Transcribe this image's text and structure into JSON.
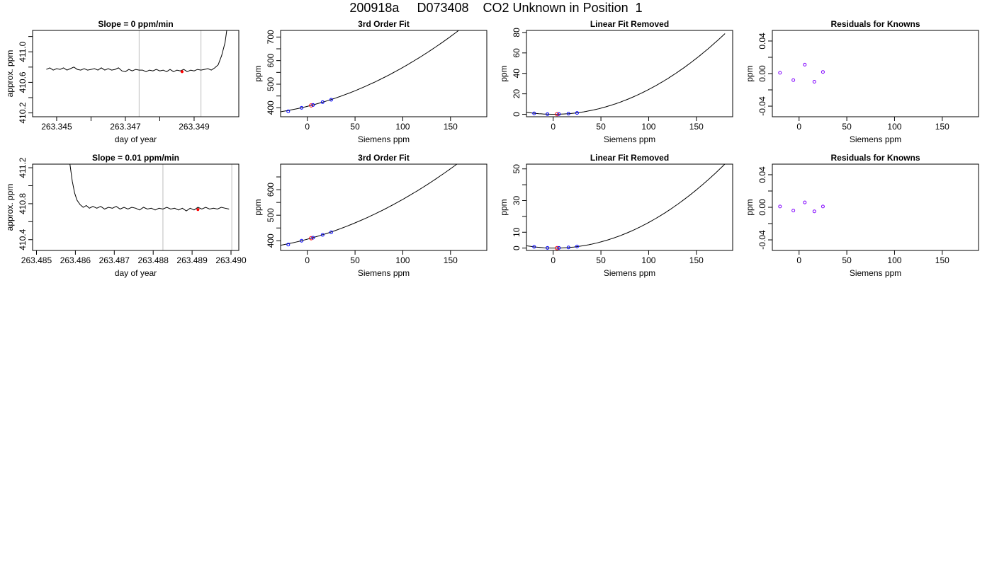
{
  "figure": {
    "title": "200918a     D073408    CO2 Unknown in Position  1"
  },
  "chart_data": [
    {
      "type": "line",
      "title": "Slope =  0  ppm/min",
      "xlabel": "day of year",
      "ylabel": "approx. ppm",
      "xlim": [
        263.3443,
        263.3503
      ],
      "ylim": [
        410.15,
        411.28
      ],
      "xticks": [
        263.345,
        263.346,
        263.347,
        263.348,
        263.349
      ],
      "xtick_labels": [
        "263.345",
        "",
        "263.347",
        "",
        "263.349"
      ],
      "yticks": [
        410.2,
        410.4,
        410.6,
        410.8,
        411.0,
        411.2
      ],
      "ytick_labels": [
        "410.2",
        "",
        "410.6",
        "",
        "411.0",
        ""
      ],
      "vlines": [
        263.3474,
        263.3492
      ],
      "series": [
        {
          "values": [
            [
              263.3447,
              410.77
            ],
            [
              263.3448,
              410.79
            ],
            [
              263.3449,
              410.76
            ],
            [
              263.345,
              410.78
            ],
            [
              263.3451,
              410.77
            ],
            [
              263.3452,
              410.79
            ],
            [
              263.3453,
              410.76
            ],
            [
              263.3454,
              410.78
            ],
            [
              263.3455,
              410.8
            ],
            [
              263.3456,
              410.77
            ],
            [
              263.3457,
              410.76
            ],
            [
              263.3458,
              410.78
            ],
            [
              263.3459,
              410.76
            ],
            [
              263.346,
              410.77
            ],
            [
              263.3461,
              410.78
            ],
            [
              263.3462,
              410.76
            ],
            [
              263.3463,
              410.79
            ],
            [
              263.3464,
              410.76
            ],
            [
              263.3465,
              410.78
            ],
            [
              263.3466,
              410.76
            ],
            [
              263.3467,
              410.77
            ],
            [
              263.3468,
              410.79
            ],
            [
              263.3469,
              410.75
            ],
            [
              263.347,
              410.74
            ],
            [
              263.3471,
              410.77
            ],
            [
              263.3472,
              410.75
            ],
            [
              263.3473,
              410.77
            ],
            [
              263.3474,
              410.76
            ],
            [
              263.3475,
              410.76
            ],
            [
              263.3476,
              410.74
            ],
            [
              263.3477,
              410.76
            ],
            [
              263.3478,
              410.75
            ],
            [
              263.3479,
              410.77
            ],
            [
              263.348,
              410.75
            ],
            [
              263.3481,
              410.76
            ],
            [
              263.3482,
              410.74
            ],
            [
              263.3483,
              410.77
            ],
            [
              263.3484,
              410.74
            ],
            [
              263.3485,
              410.76
            ],
            [
              263.3486,
              410.75
            ],
            [
              263.3487,
              410.77
            ],
            [
              263.3488,
              410.74
            ],
            [
              263.3489,
              410.76
            ],
            [
              263.349,
              410.75
            ],
            [
              263.3491,
              410.77
            ],
            [
              263.3492,
              410.76
            ],
            [
              263.3493,
              410.77
            ],
            [
              263.3494,
              410.78
            ],
            [
              263.3495,
              410.76
            ],
            [
              263.3496,
              410.79
            ],
            [
              263.3497,
              410.83
            ],
            [
              263.3498,
              410.95
            ],
            [
              263.3499,
              411.12
            ],
            [
              263.34995,
              411.28
            ]
          ]
        }
      ],
      "highlight_points": [
        [
          263.34865,
          410.74
        ]
      ],
      "point_color": "#ff0000"
    },
    {
      "type": "line",
      "title": "3rd Order Fit",
      "xlabel": "Siemens ppm",
      "ylabel": "ppm",
      "xlim": [
        -28,
        188
      ],
      "ylim": [
        362,
        728
      ],
      "xticks": [
        0,
        50,
        100,
        150
      ],
      "xtick_labels": [
        "0",
        "50",
        "100",
        "150"
      ],
      "yticks": [
        400,
        450,
        500,
        550,
        600,
        650,
        700
      ],
      "ytick_labels": [
        "400",
        "",
        "500",
        "",
        "600",
        "",
        "700"
      ],
      "curve": {
        "form": "polynomial",
        "x0": 0,
        "a": 406,
        "b": 1.0,
        "c": 0.0065,
        "d": 0.0,
        "xrange": [
          -28,
          180
        ]
      },
      "points": [
        {
          "x": -20,
          "y": 385,
          "role": "known"
        },
        {
          "x": -6,
          "y": 400,
          "role": "known"
        },
        {
          "x": 4,
          "y": 410,
          "role": "unknown"
        },
        {
          "x": 6,
          "y": 412,
          "role": "known"
        },
        {
          "x": 16,
          "y": 424,
          "role": "known"
        },
        {
          "x": 25,
          "y": 434,
          "role": "known"
        }
      ],
      "point_color": "#0000ff",
      "unknown_color": "#ff0000"
    },
    {
      "type": "line",
      "title": "Linear Fit Removed",
      "xlabel": "Siemens ppm",
      "ylabel": "ppm",
      "xlim": [
        -28,
        188
      ],
      "ylim": [
        -2.4,
        82
      ],
      "xticks": [
        0,
        50,
        100,
        150
      ],
      "xtick_labels": [
        "0",
        "50",
        "100",
        "150"
      ],
      "yticks": [
        0,
        20,
        40,
        60,
        80
      ],
      "ytick_labels": [
        "0",
        "20",
        "40",
        "60",
        "80"
      ],
      "curve": {
        "form": "polynomial",
        "x0": 0,
        "a": 0,
        "b": -0.0028,
        "c": 0.00245,
        "d": 0.0,
        "xrange": [
          -28,
          180
        ]
      },
      "points": [
        {
          "x": -20,
          "y": 0.9,
          "role": "known"
        },
        {
          "x": -6,
          "y": 0.1,
          "role": "known"
        },
        {
          "x": 4,
          "y": 0.1,
          "role": "unknown"
        },
        {
          "x": 6,
          "y": 0.2,
          "role": "known"
        },
        {
          "x": 16,
          "y": 0.6,
          "role": "known"
        },
        {
          "x": 25,
          "y": 1.3,
          "role": "known"
        }
      ],
      "point_color": "#0000ff",
      "unknown_color": "#ff0000"
    },
    {
      "type": "scatter",
      "title": "Residuals for Knowns",
      "xlabel": "Siemens ppm",
      "ylabel": "ppm",
      "xlim": [
        -28,
        188
      ],
      "ylim": [
        -0.053,
        0.053
      ],
      "xticks": [
        0,
        50,
        100,
        150
      ],
      "xtick_labels": [
        "0",
        "50",
        "100",
        "150"
      ],
      "yticks": [
        -0.04,
        -0.02,
        0.0,
        0.02,
        0.04
      ],
      "ytick_labels": [
        "-0.04",
        "",
        "0.00",
        "",
        "0.04"
      ],
      "points": [
        {
          "x": -20,
          "y": 0.001
        },
        {
          "x": -6,
          "y": -0.008
        },
        {
          "x": 6,
          "y": 0.011
        },
        {
          "x": 16,
          "y": -0.01
        },
        {
          "x": 25,
          "y": 0.002
        }
      ],
      "point_color": "#8000ff"
    },
    {
      "type": "line",
      "title": "Slope =  0.01  ppm/min",
      "xlabel": "day of year",
      "ylabel": "approx. ppm",
      "xlim": [
        263.4849,
        263.4902
      ],
      "ylim": [
        410.28,
        411.24
      ],
      "xticks": [
        263.485,
        263.486,
        263.487,
        263.488,
        263.489,
        263.49
      ],
      "xtick_labels": [
        "263.485",
        "263.486",
        "263.487",
        "263.488",
        "263.489",
        "263.490"
      ],
      "yticks": [
        410.4,
        410.6,
        410.8,
        411.0,
        411.2
      ],
      "ytick_labels": [
        "410.4",
        "",
        "410.8",
        "",
        "411.2"
      ],
      "vlines": [
        263.48825,
        263.49002
      ],
      "series": [
        {
          "values": [
            [
              263.48586,
              411.24
            ],
            [
              263.48592,
              411.05
            ],
            [
              263.48598,
              410.92
            ],
            [
              263.48604,
              410.84
            ],
            [
              263.48612,
              410.79
            ],
            [
              263.4862,
              410.76
            ],
            [
              263.48628,
              410.78
            ],
            [
              263.48636,
              410.75
            ],
            [
              263.48645,
              410.77
            ],
            [
              263.48655,
              410.75
            ],
            [
              263.48665,
              410.77
            ],
            [
              263.48675,
              410.74
            ],
            [
              263.48685,
              410.76
            ],
            [
              263.48695,
              410.75
            ],
            [
              263.48705,
              410.77
            ],
            [
              263.48715,
              410.74
            ],
            [
              263.48725,
              410.76
            ],
            [
              263.48735,
              410.74
            ],
            [
              263.48745,
              410.76
            ],
            [
              263.48755,
              410.75
            ],
            [
              263.48765,
              410.73
            ],
            [
              263.48775,
              410.76
            ],
            [
              263.48785,
              410.74
            ],
            [
              263.48795,
              410.75
            ],
            [
              263.48805,
              410.73
            ],
            [
              263.48815,
              410.75
            ],
            [
              263.48825,
              410.74
            ],
            [
              263.48835,
              410.76
            ],
            [
              263.48845,
              410.74
            ],
            [
              263.48855,
              410.75
            ],
            [
              263.48865,
              410.73
            ],
            [
              263.48875,
              410.75
            ],
            [
              263.48885,
              410.72
            ],
            [
              263.48895,
              410.75
            ],
            [
              263.48905,
              410.73
            ],
            [
              263.48915,
              410.76
            ],
            [
              263.48925,
              410.74
            ],
            [
              263.48935,
              410.76
            ],
            [
              263.48945,
              410.74
            ],
            [
              263.48955,
              410.75
            ],
            [
              263.48965,
              410.74
            ],
            [
              263.48975,
              410.76
            ],
            [
              263.48985,
              410.75
            ],
            [
              263.48995,
              410.74
            ]
          ]
        }
      ],
      "highlight_points": [
        [
          263.48915,
          410.735
        ]
      ],
      "point_color": "#ff0000"
    },
    {
      "type": "line",
      "title": "3rd Order Fit",
      "xlabel": "Siemens ppm",
      "ylabel": "ppm",
      "xlim": [
        -28,
        188
      ],
      "ylim": [
        362,
        700
      ],
      "xticks": [
        0,
        50,
        100,
        150
      ],
      "xtick_labels": [
        "0",
        "50",
        "100",
        "150"
      ],
      "yticks": [
        400,
        450,
        500,
        550,
        600,
        650
      ],
      "ytick_labels": [
        "400",
        "",
        "500",
        "",
        "600",
        ""
      ],
      "curve": {
        "form": "polynomial",
        "x0": 0,
        "a": 406,
        "b": 1.0,
        "c": 0.0056,
        "d": 0.0,
        "xrange": [
          -28,
          180
        ]
      },
      "points": [
        {
          "x": -20,
          "y": 385,
          "role": "known"
        },
        {
          "x": -6,
          "y": 400,
          "role": "known"
        },
        {
          "x": 4,
          "y": 410,
          "role": "unknown"
        },
        {
          "x": 6,
          "y": 412,
          "role": "known"
        },
        {
          "x": 16,
          "y": 423,
          "role": "known"
        },
        {
          "x": 25,
          "y": 433,
          "role": "known"
        }
      ],
      "point_color": "#0000ff",
      "unknown_color": "#ff0000"
    },
    {
      "type": "line",
      "title": "Linear Fit Removed",
      "xlabel": "Siemens ppm",
      "ylabel": "ppm",
      "xlim": [
        -28,
        188
      ],
      "ylim": [
        -1.5,
        53
      ],
      "xticks": [
        0,
        50,
        100,
        150
      ],
      "xtick_labels": [
        "0",
        "50",
        "100",
        "150"
      ],
      "yticks": [
        0,
        10,
        20,
        30,
        40,
        50
      ],
      "ytick_labels": [
        "0",
        "10",
        "",
        "30",
        "",
        "50"
      ],
      "curve": {
        "form": "polynomial",
        "x0": 0,
        "a": 0,
        "b": -0.0054,
        "c": 0.00167,
        "d": 0.0,
        "xrange": [
          -28,
          180
        ]
      },
      "points": [
        {
          "x": -20,
          "y": 0.8,
          "role": "known"
        },
        {
          "x": -6,
          "y": 0.1,
          "role": "known"
        },
        {
          "x": 4,
          "y": 0.0,
          "role": "unknown"
        },
        {
          "x": 6,
          "y": 0.1,
          "role": "known"
        },
        {
          "x": 16,
          "y": 0.4,
          "role": "known"
        },
        {
          "x": 25,
          "y": 1.0,
          "role": "known"
        }
      ],
      "point_color": "#0000ff",
      "unknown_color": "#ff0000"
    },
    {
      "type": "scatter",
      "title": "Residuals for Knowns",
      "xlabel": "Siemens ppm",
      "ylabel": "ppm",
      "xlim": [
        -28,
        188
      ],
      "ylim": [
        -0.053,
        0.053
      ],
      "xticks": [
        0,
        50,
        100,
        150
      ],
      "xtick_labels": [
        "0",
        "50",
        "100",
        "150"
      ],
      "yticks": [
        -0.04,
        -0.02,
        0.0,
        0.02,
        0.04
      ],
      "ytick_labels": [
        "-0.04",
        "",
        "0.00",
        "",
        "0.04"
      ],
      "points": [
        {
          "x": -20,
          "y": 0.001
        },
        {
          "x": -6,
          "y": -0.004
        },
        {
          "x": 6,
          "y": 0.006
        },
        {
          "x": 16,
          "y": -0.005
        },
        {
          "x": 25,
          "y": 0.001
        }
      ],
      "point_color": "#8000ff"
    }
  ]
}
